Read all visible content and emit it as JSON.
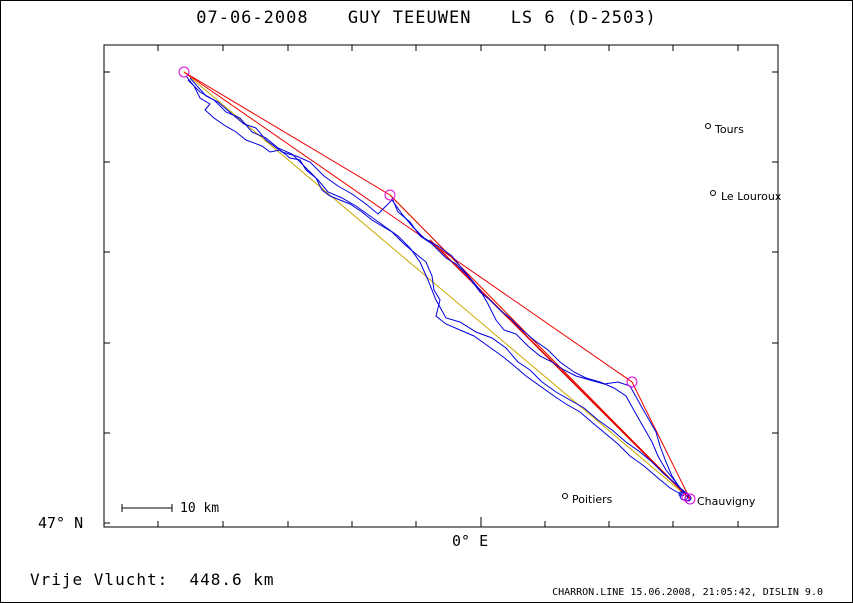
{
  "title": {
    "date": "07-06-2008",
    "pilot": "GUY TEEUWEN",
    "glider": "LS 6 (D-2503)"
  },
  "axes": {
    "lat_label": "47° N",
    "lon_label": "0° E"
  },
  "scale": {
    "label": "10 km"
  },
  "cities": [
    {
      "name": "Tours"
    },
    {
      "name": "Le Louroux"
    },
    {
      "name": "Poitiers"
    },
    {
      "name": "Chauvigny"
    }
  ],
  "footer": {
    "distance_label": "Vrije Vlucht:  448.6 km",
    "credits": "CHARRON.LINE 15.06.2008, 21:05:42, DISLIN 9.0"
  },
  "colors": {
    "track": "#0000dd",
    "turnpoint": "#dd00dd",
    "route": "#ee0000",
    "alt_route": "#ccaa00"
  }
}
